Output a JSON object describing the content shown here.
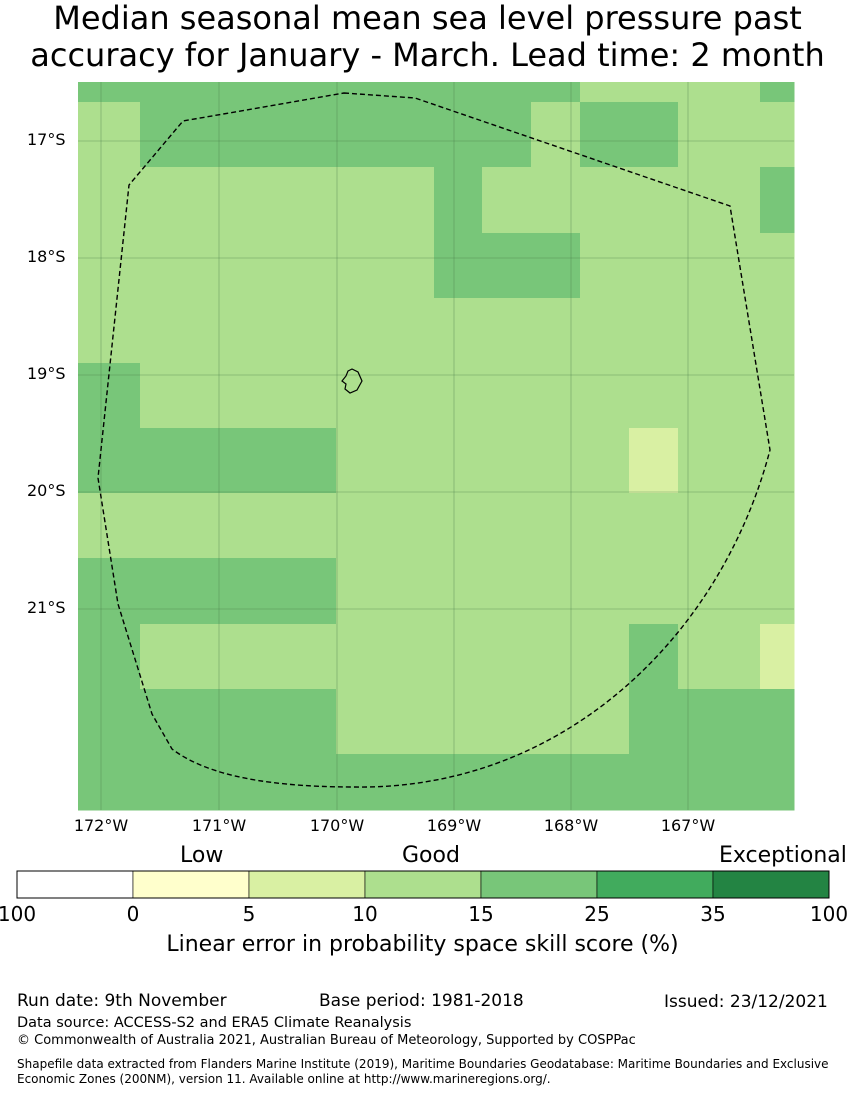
{
  "title": {
    "line1": "Median seasonal mean sea level pressure past",
    "line2": "accuracy for January - March. Lead time: 2 month"
  },
  "map": {
    "lat_labels": [
      "17°S",
      "18°S",
      "19°S",
      "20°S",
      "21°S"
    ],
    "lon_labels": [
      "172°W",
      "171°W",
      "170°W",
      "169°W",
      "168°W",
      "167°W"
    ],
    "colors": {
      "c10_15": "#addf8e",
      "c15_25": "#78c679",
      "c5_10": "#d9f0a3"
    },
    "grid_rows": [
      [
        "B",
        "B",
        "B",
        "B",
        "B",
        "B",
        "B",
        "A",
        "A",
        "A",
        "A",
        "B"
      ],
      [
        "A",
        "B",
        "B",
        "B",
        "B",
        "B",
        "A",
        "B",
        "B",
        "A",
        "A",
        "A"
      ],
      [
        "A",
        "A",
        "A",
        "A",
        "B",
        "A",
        "A",
        "A",
        "A",
        "A",
        "A",
        "B"
      ],
      [
        "A",
        "A",
        "A",
        "A",
        "B",
        "B",
        "B",
        "A",
        "A",
        "A",
        "A",
        "A"
      ],
      [
        "A",
        "A",
        "A",
        "A",
        "A",
        "A",
        "A",
        "A",
        "A",
        "A",
        "A",
        "A"
      ],
      [
        "B",
        "A",
        "A",
        "A",
        "A",
        "A",
        "A",
        "A",
        "A",
        "A",
        "A",
        "A"
      ],
      [
        "B",
        "B",
        "B",
        "A",
        "A",
        "A",
        "A",
        "A",
        "C",
        "A",
        "A",
        "A"
      ],
      [
        "A",
        "A",
        "A",
        "A",
        "A",
        "A",
        "A",
        "A",
        "A",
        "A",
        "A",
        "A"
      ],
      [
        "B",
        "B",
        "B",
        "A",
        "A",
        "A",
        "A",
        "A",
        "A",
        "A",
        "A",
        "A"
      ],
      [
        "B",
        "A",
        "A",
        "A",
        "A",
        "A",
        "A",
        "A",
        "B",
        "A",
        "A",
        "C"
      ],
      [
        "B",
        "B",
        "B",
        "A",
        "A",
        "A",
        "A",
        "A",
        "B",
        "B",
        "B",
        "B"
      ],
      [
        "B",
        "B",
        "B",
        "B",
        "B",
        "B",
        "B",
        "B",
        "B",
        "B",
        "B",
        "B"
      ]
    ]
  },
  "legend": {
    "categories": [
      "Low",
      "Good",
      "Exceptional"
    ],
    "ticks": [
      "100",
      "0",
      "5",
      "10",
      "15",
      "25",
      "35",
      "100"
    ],
    "colors": [
      "#ffffff",
      "#ffffcc",
      "#d9f0a3",
      "#addf8e",
      "#78c679",
      "#41ab5d",
      "#238443"
    ],
    "label": "Linear error in probability space skill score (%)"
  },
  "footer": {
    "run_date": "Run date: 9th November",
    "base_period": "Base period: 1981-2018",
    "issued": "Issued: 23/12/2021",
    "data_source": "Data source: ACCESS-S2 and ERA5 Climate Reanalysis",
    "copyright": "© Commonwealth of Australia 2021, Australian Bureau of Meteorology, Supported by COSPPac",
    "shapefile_1": "Shapefile data extracted from Flanders Marine Institute (2019), Maritime Boundaries Geodatabase: Maritime Boundaries and Exclusive",
    "shapefile_2": "Economic Zones (200NM), version 11. Available online at http://www.marineregions.org/."
  }
}
